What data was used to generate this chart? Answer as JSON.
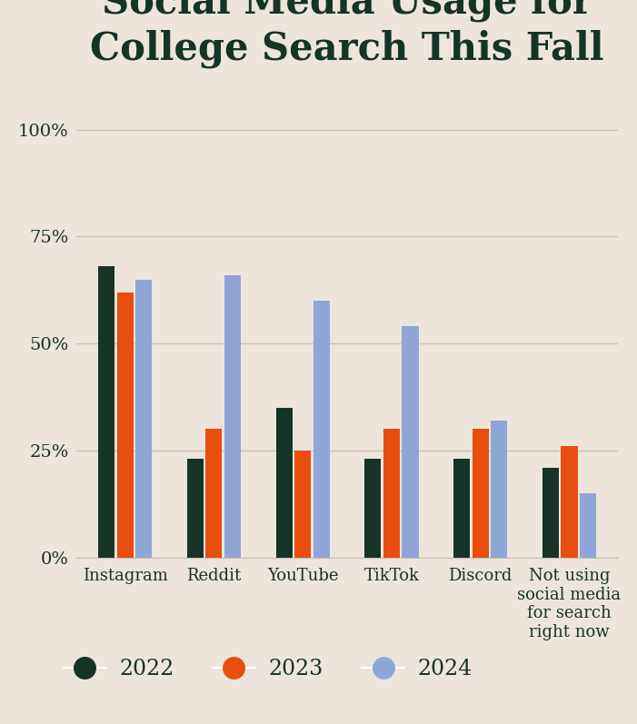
{
  "title": "Social Media Usage for\nCollege Search This Fall",
  "categories": [
    "Instagram",
    "Reddit",
    "YouTube",
    "TikTok",
    "Discord",
    "Not using\nsocial media\nfor search\nright now"
  ],
  "series": {
    "2022": [
      0.68,
      0.23,
      0.35,
      0.23,
      0.23,
      0.21
    ],
    "2023": [
      0.62,
      0.3,
      0.25,
      0.3,
      0.3,
      0.26
    ],
    "2024": [
      0.65,
      0.66,
      0.6,
      0.54,
      0.32,
      0.15
    ]
  },
  "colors": {
    "2022": "#163328",
    "2023": "#e84e0f",
    "2024": "#8fa5d5"
  },
  "yticks": [
    0,
    0.25,
    0.5,
    0.75,
    1.0
  ],
  "ytick_labels": [
    "0%",
    "25%",
    "50%",
    "75%",
    "100%"
  ],
  "background_color": "#ede5dc",
  "title_color": "#163328",
  "tick_color": "#163328",
  "grid_color": "#c9c0b4",
  "title_fontsize": 30,
  "legend_fontsize": 17,
  "tick_fontsize": 14,
  "xlabel_fontsize": 13
}
